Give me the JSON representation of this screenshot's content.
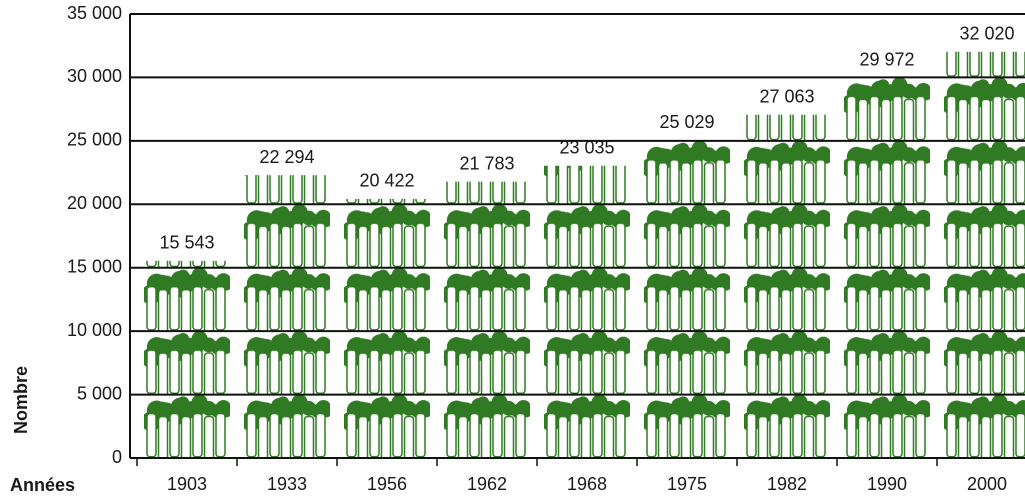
{
  "chart_data": {
    "type": "bar",
    "y_label": "Nombre",
    "x_label": "Années",
    "categories": [
      "1903",
      "1933",
      "1956",
      "1962",
      "1968",
      "1975",
      "1982",
      "1990",
      "2000"
    ],
    "values": [
      15543,
      22294,
      20422,
      21783,
      23035,
      25029,
      27063,
      29972,
      32020
    ],
    "value_labels": [
      "15 543",
      "22 294",
      "20 422",
      "21 783",
      "23 035",
      "25 029",
      "27 063",
      "29 972",
      "32 020"
    ],
    "color": "#2f7a22",
    "ylim": [
      0,
      35000
    ],
    "yticks": [
      0,
      {
        "value": 5000,
        "label": "5 000"
      },
      {
        "value": 10000,
        "label": "10 000"
      },
      {
        "value": 15000,
        "label": "15 000"
      },
      {
        "value": 20000,
        "label": "20 000"
      },
      {
        "value": 25000,
        "label": "25 000"
      },
      {
        "value": 30000,
        "label": "30 000"
      },
      {
        "value": 35000,
        "label": "35 000"
      }
    ],
    "grid": true
  }
}
